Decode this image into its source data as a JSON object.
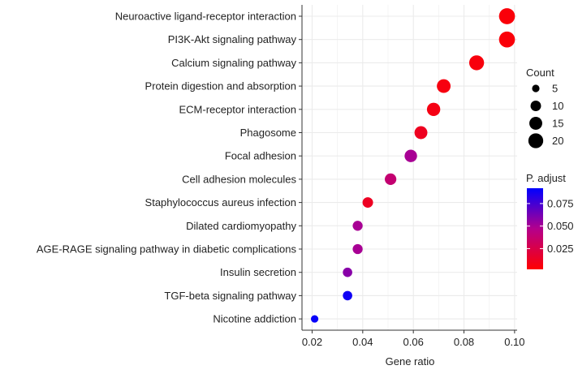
{
  "chart_data": {
    "type": "scatter",
    "title": "",
    "xlabel": "Gene ratio",
    "ylabel": "",
    "xlim": [
      0.016,
      0.101
    ],
    "x_ticks": [
      0.02,
      0.04,
      0.06,
      0.08,
      0.1
    ],
    "x_tick_labels": [
      "0.02",
      "0.04",
      "0.06",
      "0.08",
      "0.10"
    ],
    "grid": true,
    "background": "#ebebeb",
    "categories": [
      "Neuroactive ligand-receptor interaction",
      "PI3K-Akt signaling pathway",
      "Calcium signaling pathway",
      "Protein digestion and absorption",
      "ECM-receptor interaction",
      "Phagosome",
      "Focal adhesion",
      "Cell adhesion molecules",
      "Staphylococcus aureus infection",
      "Dilated cardiomyopathy",
      "AGE-RAGE signaling pathway in diabetic complications",
      "Insulin secretion",
      "TGF-beta signaling pathway",
      "Nicotine addiction"
    ],
    "points": [
      {
        "term": "Neuroactive ligand-receptor interaction",
        "gene_ratio": 0.097,
        "count": 23,
        "p_adjust": 0.005
      },
      {
        "term": "PI3K-Akt signaling pathway",
        "gene_ratio": 0.097,
        "count": 23,
        "p_adjust": 0.005
      },
      {
        "term": "Calcium signaling pathway",
        "gene_ratio": 0.085,
        "count": 20,
        "p_adjust": 0.006
      },
      {
        "term": "Protein digestion and absorption",
        "gene_ratio": 0.072,
        "count": 17,
        "p_adjust": 0.007
      },
      {
        "term": "ECM-receptor interaction",
        "gene_ratio": 0.068,
        "count": 16,
        "p_adjust": 0.008
      },
      {
        "term": "Phagosome",
        "gene_ratio": 0.063,
        "count": 15,
        "p_adjust": 0.012
      },
      {
        "term": "Focal adhesion",
        "gene_ratio": 0.059,
        "count": 14,
        "p_adjust": 0.05
      },
      {
        "term": "Cell adhesion molecules",
        "gene_ratio": 0.051,
        "count": 12,
        "p_adjust": 0.038
      },
      {
        "term": "Staphylococcus aureus infection",
        "gene_ratio": 0.042,
        "count": 10,
        "p_adjust": 0.013
      },
      {
        "term": "Dilated cardiomyopathy",
        "gene_ratio": 0.038,
        "count": 9,
        "p_adjust": 0.05
      },
      {
        "term": "AGE-RAGE signaling pathway in diabetic complications",
        "gene_ratio": 0.038,
        "count": 9,
        "p_adjust": 0.05
      },
      {
        "term": "Insulin secretion",
        "gene_ratio": 0.034,
        "count": 8,
        "p_adjust": 0.058
      },
      {
        "term": "TGF-beta signaling pathway",
        "gene_ratio": 0.034,
        "count": 8,
        "p_adjust": 0.088
      },
      {
        "term": "Nicotine addiction",
        "gene_ratio": 0.021,
        "count": 5,
        "p_adjust": 0.09
      }
    ],
    "size_legend": {
      "title": "Count",
      "values": [
        5,
        10,
        15,
        20
      ],
      "labels": [
        "5",
        "10",
        "15",
        "20"
      ]
    },
    "color_legend": {
      "title": "P. adjust",
      "range": [
        0.002,
        0.092
      ],
      "ticks": [
        0.025,
        0.05,
        0.075
      ],
      "tick_labels": [
        "0.025",
        "0.050",
        "0.075"
      ],
      "low_color": "#ff0000",
      "high_color": "#0000ff"
    }
  }
}
